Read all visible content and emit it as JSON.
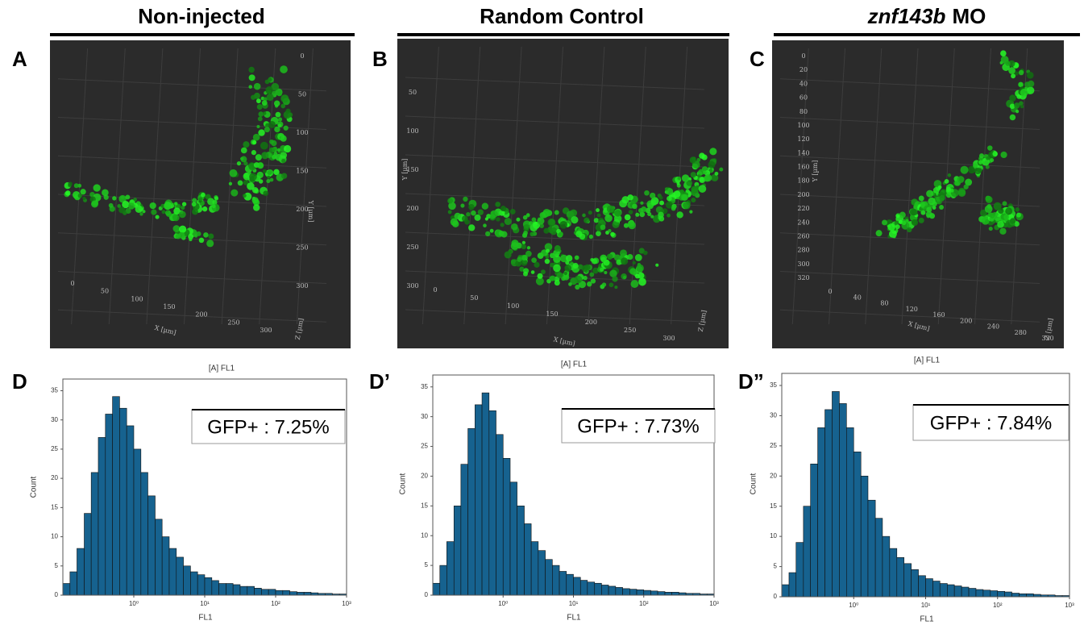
{
  "columns": [
    {
      "title": "Non-injected"
    },
    {
      "title": "Random Control"
    },
    {
      "title_italic": "znf143b",
      "title": "MO"
    }
  ],
  "image_panels": [
    {
      "label": "A",
      "x_label": "X [µm]",
      "y_label": "Y [µm]",
      "z_label": "Z [µm]",
      "x_ticks": [
        0,
        50,
        100,
        150,
        200,
        250,
        300
      ],
      "y_ticks": [
        0,
        50,
        100,
        150,
        200,
        250,
        300
      ]
    },
    {
      "label": "B",
      "x_label": "X [µm]",
      "y_label": "Y [µm]",
      "z_label": "Z [µm]",
      "x_ticks": [
        0,
        50,
        100,
        150,
        200,
        250,
        300
      ],
      "y_ticks": [
        50,
        100,
        150,
        200,
        250,
        300
      ]
    },
    {
      "label": "C",
      "x_label": "X [µm]",
      "y_label": "Y [µm]",
      "z_label": "Z [µm]",
      "x_ticks": [
        0,
        40,
        80,
        120,
        160,
        200,
        240,
        280,
        320
      ],
      "y_ticks": [
        0,
        20,
        40,
        60,
        80,
        100,
        120,
        140,
        160,
        180,
        200,
        220,
        240,
        260,
        280,
        300,
        320
      ]
    }
  ],
  "chart_data": [
    {
      "type": "histogram",
      "panel_label": "D",
      "title": "[A] FL1",
      "x_label": "FL1",
      "y_label": "Count",
      "annotation": "GFP+ : 7.25%",
      "color": "#16628f",
      "log_x": true,
      "xlim": [
        0.1,
        1000
      ],
      "ylim": [
        0,
        37
      ],
      "xticks": [
        {
          "value": 1,
          "label": "10⁰"
        },
        {
          "value": 10,
          "label": "10¹"
        },
        {
          "value": 100,
          "label": "10²"
        },
        {
          "value": 1000,
          "label": "10³"
        }
      ],
      "yticks": [
        0,
        5,
        10,
        15,
        20,
        25,
        30,
        35
      ],
      "bins": [
        0.1,
        0.126,
        0.158,
        0.2,
        0.251,
        0.316,
        0.398,
        0.501,
        0.631,
        0.794,
        1,
        1.26,
        1.58,
        2,
        2.51,
        3.16,
        3.98,
        5.01,
        6.31,
        7.94,
        10,
        12.6,
        15.8,
        20,
        25.1,
        31.6,
        39.8,
        50.1,
        63.1,
        79.4,
        100,
        126,
        158,
        200,
        251,
        316,
        398,
        501,
        631,
        794,
        1000
      ],
      "values": [
        2,
        4,
        8,
        14,
        21,
        27,
        31,
        34,
        32,
        29,
        25,
        21,
        17,
        13,
        10,
        8,
        6.5,
        5,
        4,
        3.5,
        3,
        2.5,
        2,
        2,
        1.8,
        1.5,
        1.5,
        1.2,
        1,
        1,
        0.8,
        0.8,
        0.6,
        0.5,
        0.5,
        0.4,
        0.3,
        0.3,
        0.2,
        0.2
      ]
    },
    {
      "type": "histogram",
      "panel_label": "D’",
      "title": "[A] FL1",
      "x_label": "FL1",
      "y_label": "Count",
      "annotation": "GFP+ : 7.73%",
      "color": "#16628f",
      "log_x": true,
      "xlim": [
        0.1,
        1000
      ],
      "ylim": [
        0,
        37
      ],
      "xticks": [
        {
          "value": 1,
          "label": "10⁰"
        },
        {
          "value": 10,
          "label": "10¹"
        },
        {
          "value": 100,
          "label": "10²"
        },
        {
          "value": 1000,
          "label": "10³"
        }
      ],
      "yticks": [
        0,
        5,
        10,
        15,
        20,
        25,
        30,
        35
      ],
      "bins": [
        0.1,
        0.126,
        0.158,
        0.2,
        0.251,
        0.316,
        0.398,
        0.501,
        0.631,
        0.794,
        1,
        1.26,
        1.58,
        2,
        2.51,
        3.16,
        3.98,
        5.01,
        6.31,
        7.94,
        10,
        12.6,
        15.8,
        20,
        25.1,
        31.6,
        39.8,
        50.1,
        63.1,
        79.4,
        100,
        126,
        158,
        200,
        251,
        316,
        398,
        501,
        631,
        794,
        1000
      ],
      "values": [
        2,
        5,
        9,
        15,
        22,
        28,
        32,
        34,
        31,
        27,
        23,
        19,
        15,
        12,
        9,
        7.5,
        6,
        5,
        4,
        3.5,
        3,
        2.5,
        2.2,
        2,
        1.7,
        1.5,
        1.3,
        1.1,
        1,
        0.9,
        0.8,
        0.7,
        0.6,
        0.5,
        0.5,
        0.4,
        0.3,
        0.3,
        0.2,
        0.2
      ]
    },
    {
      "type": "histogram",
      "panel_label": "D”",
      "title": "[A] FL1",
      "x_label": "FL1",
      "y_label": "Count",
      "annotation": "GFP+ : 7.84%",
      "color": "#16628f",
      "log_x": true,
      "xlim": [
        0.1,
        1000
      ],
      "ylim": [
        0,
        37
      ],
      "xticks": [
        {
          "value": 1,
          "label": "10⁰"
        },
        {
          "value": 10,
          "label": "10¹"
        },
        {
          "value": 100,
          "label": "10²"
        },
        {
          "value": 1000,
          "label": "10³"
        }
      ],
      "yticks": [
        0,
        5,
        10,
        15,
        20,
        25,
        30,
        35
      ],
      "bins": [
        0.1,
        0.126,
        0.158,
        0.2,
        0.251,
        0.316,
        0.398,
        0.501,
        0.631,
        0.794,
        1,
        1.26,
        1.58,
        2,
        2.51,
        3.16,
        3.98,
        5.01,
        6.31,
        7.94,
        10,
        12.6,
        15.8,
        20,
        25.1,
        31.6,
        39.8,
        50.1,
        63.1,
        79.4,
        100,
        126,
        158,
        200,
        251,
        316,
        398,
        501,
        631,
        794,
        1000
      ],
      "values": [
        2,
        4,
        9,
        15,
        22,
        28,
        31,
        34,
        32,
        28,
        24,
        20,
        16,
        13,
        10,
        8,
        6.5,
        5.5,
        4.5,
        3.5,
        3,
        2.6,
        2.2,
        2,
        1.8,
        1.6,
        1.4,
        1.2,
        1.1,
        1,
        0.9,
        0.8,
        0.6,
        0.5,
        0.5,
        0.4,
        0.3,
        0.3,
        0.2,
        0.2
      ]
    }
  ]
}
